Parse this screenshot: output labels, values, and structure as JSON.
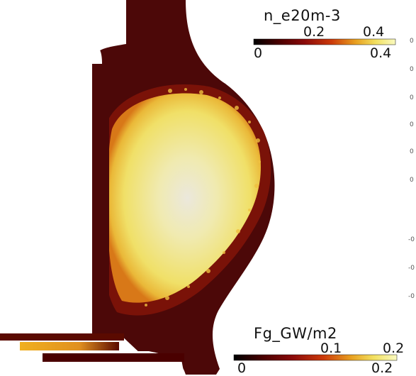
{
  "plasma_density_colorbar": {
    "title": "n_e20m-3",
    "tick_top": [
      "0.2",
      "0.4"
    ],
    "tick_bottom": [
      "0",
      "0.4"
    ],
    "range": [
      0,
      0.4
    ],
    "colormap": [
      "#000000",
      "#4a0000",
      "#8b0a0a",
      "#cc3a0a",
      "#e8a020",
      "#f2e060",
      "#fafac0"
    ]
  },
  "heat_flux_colorbar": {
    "title": "Fg_GW/m2",
    "tick_top": [
      "0.1",
      "0.2"
    ],
    "tick_bottom": [
      "0",
      "0.2"
    ],
    "range": [
      0,
      0.2
    ],
    "colormap": [
      "#000000",
      "#4a0000",
      "#8b0a0a",
      "#cc3a0a",
      "#e8a020",
      "#f2e060",
      "#fafac0"
    ]
  },
  "edge_tick_marks": [
    "0",
    "0",
    "0",
    "0",
    "0",
    "0",
    "-0",
    "-0",
    "-0"
  ],
  "colors": {
    "background": "#ffffff",
    "plasma_core": "#f5f2d8",
    "plasma_body": "#f0e070",
    "edge_dark": "#3a0000",
    "vessel": "#4c0808"
  }
}
